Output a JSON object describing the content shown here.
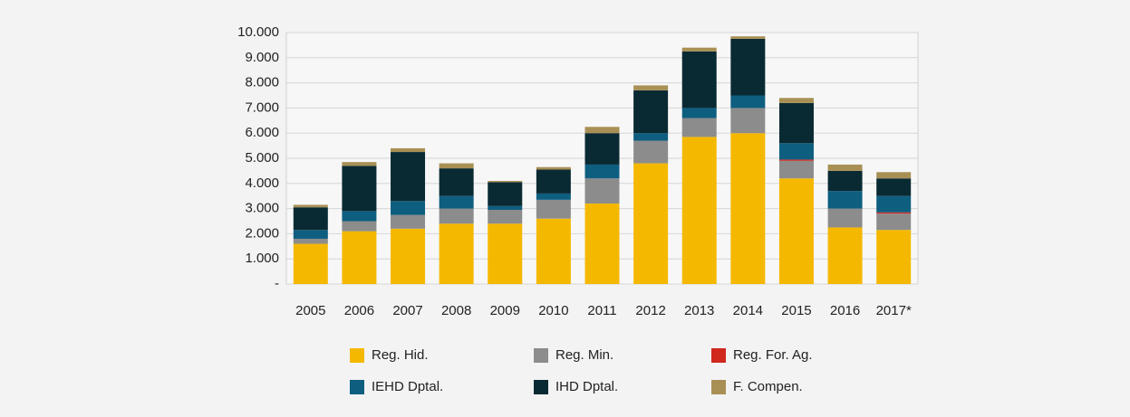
{
  "chart_data": {
    "type": "stacked_bar",
    "categories": [
      "2005",
      "2006",
      "2007",
      "2008",
      "2009",
      "2010",
      "2011",
      "2012",
      "2013",
      "2014",
      "2015",
      "2016",
      "2017*"
    ],
    "series": [
      {
        "name": "Reg. Hid.",
        "color": "#f5b800",
        "values": [
          1600,
          2100,
          2200,
          2400,
          2400,
          2600,
          3200,
          4800,
          5850,
          6000,
          4200,
          2250,
          2150
        ]
      },
      {
        "name": "Reg. Min.",
        "color": "#8c8c8c",
        "values": [
          200,
          400,
          550,
          600,
          550,
          750,
          1000,
          900,
          750,
          1000,
          700,
          750,
          650
        ]
      },
      {
        "name": "Reg. For. Ag.",
        "color": "#d0281e",
        "values": [
          0,
          0,
          0,
          0,
          0,
          0,
          0,
          0,
          0,
          0,
          50,
          0,
          50
        ]
      },
      {
        "name": "IEHD Dptal.",
        "color": "#0e5e80",
        "values": [
          350,
          400,
          550,
          500,
          150,
          250,
          550,
          300,
          400,
          500,
          650,
          700,
          650
        ]
      },
      {
        "name": "IHD Dptal.",
        "color": "#0a2a33",
        "values": [
          900,
          1800,
          1950,
          1100,
          950,
          950,
          1250,
          1700,
          2250,
          2250,
          1600,
          800,
          700
        ]
      },
      {
        "name": "F. Compen.",
        "color": "#a89055",
        "values": [
          100,
          150,
          150,
          200,
          50,
          100,
          250,
          200,
          150,
          100,
          200,
          250,
          250
        ]
      }
    ],
    "ylim": [
      0,
      10000
    ],
    "yticks": [
      {
        "value": 0,
        "label": "-"
      },
      {
        "value": 1000,
        "label": "1.000"
      },
      {
        "value": 2000,
        "label": "2.000"
      },
      {
        "value": 3000,
        "label": "3.000"
      },
      {
        "value": 4000,
        "label": "4.000"
      },
      {
        "value": 5000,
        "label": "5.000"
      },
      {
        "value": 6000,
        "label": "6.000"
      },
      {
        "value": 7000,
        "label": "7.000"
      },
      {
        "value": 8000,
        "label": "8.000"
      },
      {
        "value": 9000,
        "label": "9.000"
      },
      {
        "value": 10000,
        "label": "10.000"
      }
    ],
    "grid": true
  }
}
